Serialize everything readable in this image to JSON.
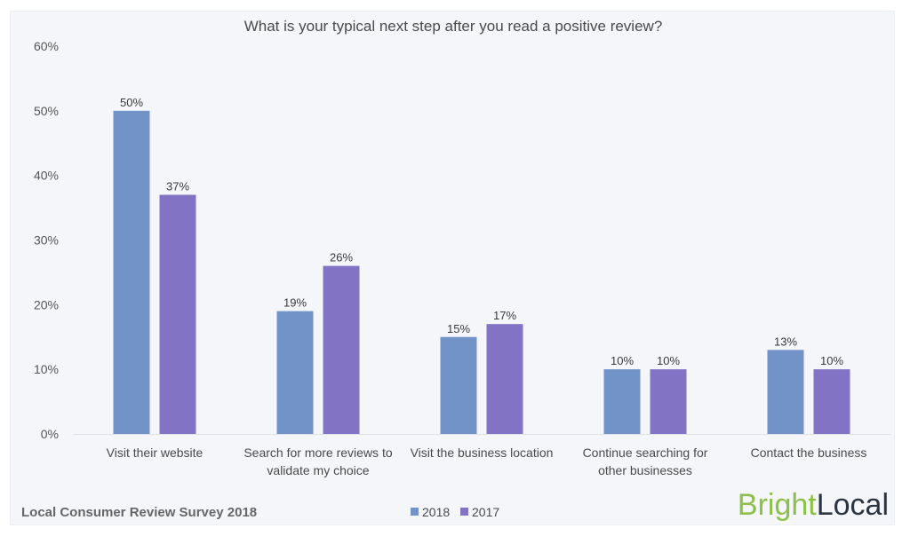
{
  "chart_data": {
    "type": "bar",
    "title": "What is your typical next step after you read a positive review?",
    "xlabel": "",
    "ylabel": "",
    "ylim": [
      0,
      60
    ],
    "yticks": [
      "0%",
      "10%",
      "20%",
      "30%",
      "40%",
      "50%",
      "60%"
    ],
    "ytick_values": [
      0,
      10,
      20,
      30,
      40,
      50,
      60
    ],
    "grid": false,
    "categories": [
      [
        "Visit their website"
      ],
      [
        "Search for more reviews to",
        "validate my choice"
      ],
      [
        "Visit the business location"
      ],
      [
        "Continue searching for",
        "other businesses"
      ],
      [
        "Contact the business"
      ]
    ],
    "series": [
      {
        "name": "2018",
        "color": "#7193c8",
        "values": [
          50,
          19,
          15,
          10,
          13
        ],
        "labels": [
          "50%",
          "19%",
          "15%",
          "10%",
          "13%"
        ]
      },
      {
        "name": "2017",
        "color": "#8373c4",
        "values": [
          37,
          26,
          17,
          10,
          10
        ],
        "labels": [
          "37%",
          "26%",
          "17%",
          "10%",
          "10%"
        ]
      }
    ],
    "legend_position": "bottom-center",
    "source": "Local Consumer Review Survey 2018",
    "brand": {
      "part1": "Bright",
      "part2": "Local"
    }
  }
}
